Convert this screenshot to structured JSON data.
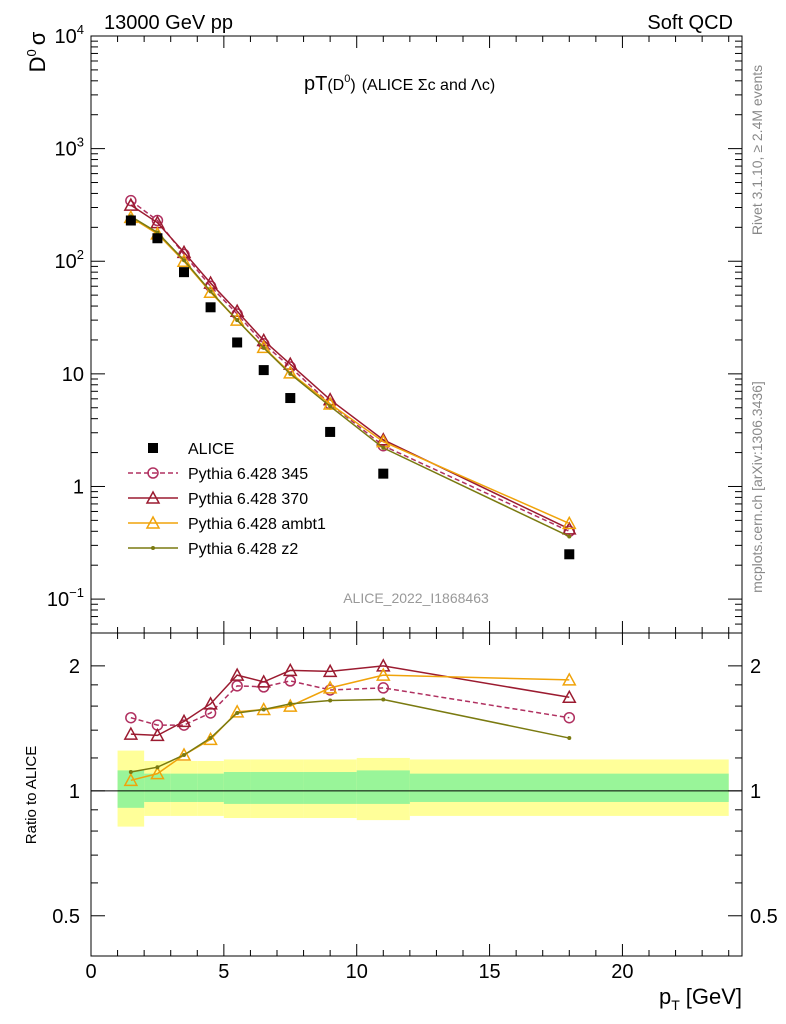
{
  "header": {
    "beam_label": "13000 GeV pp",
    "process_label": "Soft QCD"
  },
  "side_labels": {
    "rivet": "Rivet 3.1.10, ≥ 2.4M events",
    "mcplots": "mcplots.cern.ch [arXiv:1306.3436]"
  },
  "analysis_id": "ALICE_2022_I1868463",
  "chart_data": [
    {
      "type": "scatter",
      "panel": "main",
      "title_main": "pT",
      "title_paren": "(D",
      "title_sup": "0",
      "title_close": ")",
      "title_rest": "(ALICE Σc and Λc)",
      "ylabel_main": "D",
      "ylabel_sup": "0",
      "ylabel_sym": "σ",
      "yscale": "log",
      "ylim": [
        0.05,
        10000
      ],
      "xlim": [
        0,
        24.5
      ],
      "yticks": [
        {
          "value": 0.1,
          "base": "10",
          "exp": "−1"
        },
        {
          "value": 1,
          "base": "1",
          "exp": ""
        },
        {
          "value": 10,
          "base": "10",
          "exp": ""
        },
        {
          "value": 100,
          "base": "10",
          "exp": "2"
        },
        {
          "value": 1000,
          "base": "10",
          "exp": "3"
        },
        {
          "value": 10000,
          "base": "10",
          "exp": "4"
        }
      ],
      "legend_position": "bottom-left",
      "series": [
        {
          "name": "ALICE",
          "style": "data",
          "color": "#000000",
          "x": [
            1.5,
            2.5,
            3.5,
            4.5,
            5.5,
            6.5,
            7.5,
            9,
            11,
            18
          ],
          "y": [
            230,
            160,
            80,
            39,
            19,
            10.8,
            6.1,
            3.05,
            1.3,
            0.25
          ]
        },
        {
          "name": "Pythia 6.428 345",
          "style": "dashed-circle",
          "color": "#b03060",
          "x": [
            1.5,
            2.5,
            3.5,
            4.5,
            5.5,
            6.5,
            7.5,
            9,
            11,
            18
          ],
          "y": [
            345,
            230,
            115,
            60,
            34,
            18.5,
            11.5,
            5.4,
            2.3,
            0.4
          ]
        },
        {
          "name": "Pythia 6.428 370",
          "style": "solid-triangle",
          "color": "#9b1b30",
          "x": [
            1.5,
            2.5,
            3.5,
            4.5,
            5.5,
            6.5,
            7.5,
            9,
            11,
            18
          ],
          "y": [
            315,
            220,
            120,
            64,
            36,
            19.8,
            12.2,
            5.9,
            2.6,
            0.42
          ]
        },
        {
          "name": "Pythia 6.428 ambt1",
          "style": "solid-triangle",
          "color": "#f0a30a",
          "x": [
            1.5,
            2.5,
            3.5,
            4.5,
            5.5,
            6.5,
            7.5,
            9,
            11,
            18
          ],
          "y": [
            245,
            175,
            100,
            53,
            30,
            17.2,
            10.2,
            5.4,
            2.5,
            0.47
          ]
        },
        {
          "name": "Pythia 6.428 z2",
          "style": "solid-dot",
          "color": "#7a7a10",
          "x": [
            1.5,
            2.5,
            3.5,
            4.5,
            5.5,
            6.5,
            7.5,
            9,
            11,
            18
          ],
          "y": [
            250,
            180,
            102,
            54,
            30,
            17.0,
            10.0,
            5.15,
            2.2,
            0.36
          ]
        }
      ]
    },
    {
      "type": "line",
      "panel": "ratio",
      "ylabel": "Ratio to ALICE",
      "yscale": "log",
      "ylim": [
        0.4,
        2.4
      ],
      "xlim": [
        0,
        24.5
      ],
      "yticks": [
        {
          "value": 0.5,
          "label": "0.5"
        },
        {
          "value": 1,
          "label": "1"
        },
        {
          "value": 2,
          "label": "2"
        }
      ],
      "xticks": [
        {
          "value": 0,
          "label": "0"
        },
        {
          "value": 5,
          "label": "5"
        },
        {
          "value": 10,
          "label": "10"
        },
        {
          "value": 15,
          "label": "15"
        },
        {
          "value": 20,
          "label": "20"
        }
      ],
      "xlabel_main": "p",
      "xlabel_sub": "T",
      "xlabel_unit": "[GeV]",
      "bands": [
        {
          "x0": 1,
          "x1": 2,
          "y_inner": [
            0.91,
            1.12
          ],
          "y_outer": [
            0.82,
            1.25
          ]
        },
        {
          "x0": 2,
          "x1": 3,
          "y_inner": [
            0.94,
            1.1
          ],
          "y_outer": [
            0.87,
            1.18
          ]
        },
        {
          "x0": 3,
          "x1": 4,
          "y_inner": [
            0.94,
            1.1
          ],
          "y_outer": [
            0.87,
            1.18
          ]
        },
        {
          "x0": 4,
          "x1": 5,
          "y_inner": [
            0.94,
            1.1
          ],
          "y_outer": [
            0.87,
            1.18
          ]
        },
        {
          "x0": 5,
          "x1": 6,
          "y_inner": [
            0.93,
            1.11
          ],
          "y_outer": [
            0.86,
            1.19
          ]
        },
        {
          "x0": 6,
          "x1": 7,
          "y_inner": [
            0.93,
            1.11
          ],
          "y_outer": [
            0.86,
            1.19
          ]
        },
        {
          "x0": 7,
          "x1": 8,
          "y_inner": [
            0.93,
            1.11
          ],
          "y_outer": [
            0.86,
            1.19
          ]
        },
        {
          "x0": 8,
          "x1": 10,
          "y_inner": [
            0.93,
            1.11
          ],
          "y_outer": [
            0.86,
            1.19
          ]
        },
        {
          "x0": 10,
          "x1": 12,
          "y_inner": [
            0.93,
            1.12
          ],
          "y_outer": [
            0.85,
            1.2
          ]
        },
        {
          "x0": 12,
          "x1": 24,
          "y_inner": [
            0.94,
            1.1
          ],
          "y_outer": [
            0.87,
            1.19
          ]
        }
      ],
      "series": [
        {
          "name": "Pythia 6.428 345",
          "style": "dashed-circle",
          "color": "#b03060",
          "x": [
            1.5,
            2.5,
            3.5,
            4.5,
            5.5,
            6.5,
            7.5,
            9,
            11,
            18
          ],
          "y": [
            1.5,
            1.44,
            1.44,
            1.54,
            1.79,
            1.78,
            1.84,
            1.75,
            1.77,
            1.5
          ]
        },
        {
          "name": "Pythia 6.428 370",
          "style": "solid-triangle",
          "color": "#9b1b30",
          "x": [
            1.5,
            2.5,
            3.5,
            4.5,
            5.5,
            6.5,
            7.5,
            9,
            11,
            18
          ],
          "y": [
            1.37,
            1.36,
            1.47,
            1.62,
            1.9,
            1.83,
            1.95,
            1.94,
            2.0,
            1.68
          ]
        },
        {
          "name": "Pythia 6.428 ambt1",
          "style": "solid-triangle",
          "color": "#f0a30a",
          "x": [
            1.5,
            2.5,
            3.5,
            4.5,
            5.5,
            6.5,
            7.5,
            9,
            11,
            18
          ],
          "y": [
            1.06,
            1.1,
            1.22,
            1.33,
            1.55,
            1.57,
            1.6,
            1.77,
            1.9,
            1.85
          ]
        },
        {
          "name": "Pythia 6.428 z2",
          "style": "solid-dot",
          "color": "#7a7a10",
          "x": [
            1.5,
            2.5,
            3.5,
            4.5,
            5.5,
            6.5,
            7.5,
            9,
            11,
            18
          ],
          "y": [
            1.11,
            1.14,
            1.22,
            1.34,
            1.54,
            1.57,
            1.62,
            1.65,
            1.66,
            1.34
          ]
        }
      ]
    }
  ]
}
